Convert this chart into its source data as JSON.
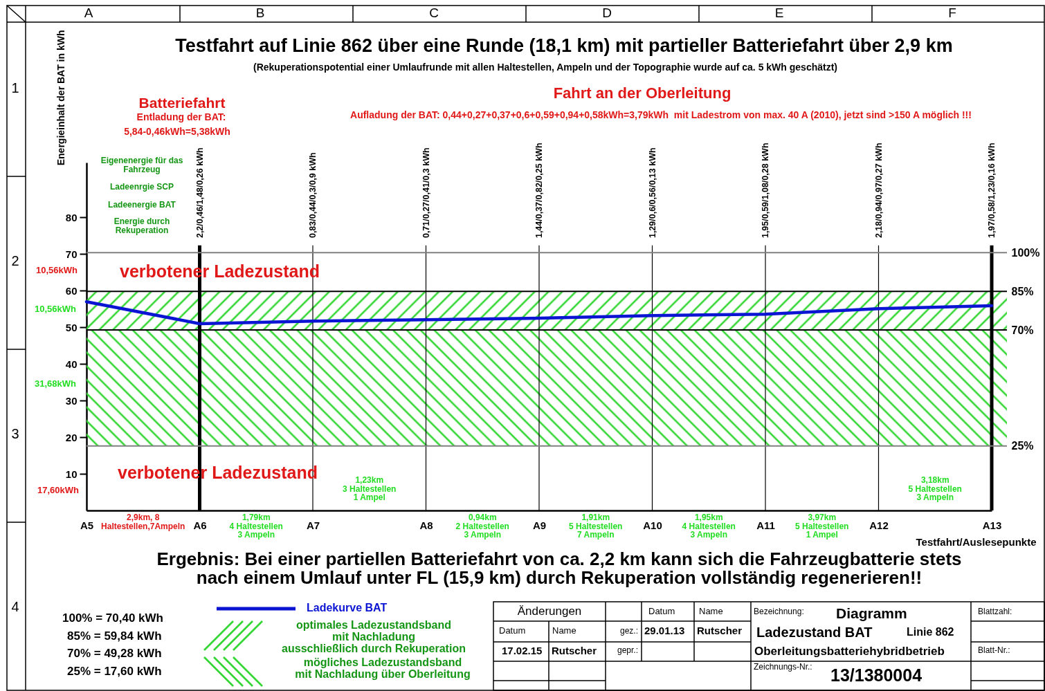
{
  "chart_data": {
    "type": "line",
    "title": "Testfahrt auf Linie 862 über eine Runde (18,1 km) mit partieller Batteriefahrt über 2,9 km",
    "subtitle": "(Rekuperationspotential einer Umlaufrunde mit allen Haltestellen, Ampeln und der Topographie wurde auf ca. 5 kWh geschätzt)",
    "xlabel": "Testfahrt/Auslesepunkte",
    "ylabel": "Energieinhalt der BAT in kWh",
    "categories": [
      "A5",
      "A6",
      "A7",
      "A8",
      "A9",
      "A10",
      "A11",
      "A12",
      "A13"
    ],
    "series": [
      {
        "name": "Ladekurve BAT",
        "color": "#0a14d2",
        "values": [
          57.0,
          51.0,
          51.7,
          52.1,
          52.5,
          53.2,
          53.6,
          55.1,
          55.9
        ]
      }
    ],
    "ylim": [
      0,
      95
    ],
    "yticks": [
      10,
      20,
      30,
      40,
      50,
      60,
      70,
      80
    ],
    "y2lim": [
      0,
      134.94
    ],
    "y2ticks": [
      {
        "value": 100,
        "label": "100%"
      },
      {
        "value": 85,
        "label": "85%"
      },
      {
        "value": 70,
        "label": "70%"
      },
      {
        "value": 25,
        "label": "25%"
      }
    ],
    "grid": false,
    "legend": "bottom",
    "marker": "none",
    "line_style": "solid",
    "bands": [
      {
        "axis": "y",
        "from": 49.28,
        "to": 59.84,
        "color": "#33d633"
      },
      {
        "axis": "y",
        "from": 17.6,
        "to": 49.28,
        "color": "#33d633"
      }
    ],
    "ref_lines": [
      {
        "axis": "y",
        "value": 70.4,
        "color": "#808080"
      },
      {
        "axis": "y",
        "value": 59.84,
        "color": "#000000"
      },
      {
        "axis": "y",
        "value": 49.28,
        "color": "#000000"
      },
      {
        "axis": "y",
        "value": 17.6,
        "color": "#808080"
      },
      {
        "axis": "x",
        "value": "A6",
        "label": "2,2/0,46/1,48/0,26 kWh",
        "color": "#000000"
      },
      {
        "axis": "x",
        "value": "A7",
        "label": "0,83/0,44/0,3/0,9 kWh",
        "color": "#000000"
      },
      {
        "axis": "x",
        "value": "A8",
        "label": "0,71/0,27/0,41/0,3 kWh",
        "color": "#000000"
      },
      {
        "axis": "x",
        "value": "A9",
        "label": "1,44/0,37/0,82/0,25 kWh",
        "color": "#000000"
      },
      {
        "axis": "x",
        "value": "A10",
        "label": "1,29/0,6/0,56/0,13 kWh",
        "color": "#000000"
      },
      {
        "axis": "x",
        "value": "A11",
        "label": "1,95/0,59/1,08/0,28 kWh",
        "color": "#000000"
      },
      {
        "axis": "x",
        "value": "A12",
        "label": "2,18/0,94/0,97/0,27 kWh",
        "color": "#000000"
      },
      {
        "axis": "x",
        "value": "A13",
        "label": "1,97/0,58/1,23/0,16 kWh",
        "color": "#000000"
      }
    ],
    "annotations": [
      "Batteriefahrt",
      "Entladung der BAT:",
      "5,84-0,46kWh=5,38kWh",
      "Fahrt an der Oberleitung",
      "Aufladung der BAT: 0,44+0,27+0,37+0,6+0,59+0,94+0,58kWh=3,79kWh  mit Ladestrom von max. 40 A (2010), jetzt sind >150 A möglich !!!",
      "Eigenenergie für das Fahrzeug",
      "Ladeenrgie SCP",
      "Ladeenergie BAT",
      "Energie durch Rekuperation",
      "10,56kWh",
      "10,56kWh",
      "31,68kWh",
      "17,60kWh",
      "verbotener Ladezustand",
      "verbotener Ladezustand",
      "2,9km, 8 Haltestellen,7Ampeln",
      "1,79km\n4 Haltestellen\n3 Ampeln",
      "1,23km\n3 Haltestellen\n1 Ampel",
      "0,94km\n2 Haltestellen\n3 Ampeln",
      "1,91km\n5 Haltestellen\n7 Ampeln",
      "1,95km\n4 Haltestellen\n3 Ampeln",
      "3,97km\n5 Haltestellen\n1 Ampel",
      "3,18km\n5 Haltestellen\n3 Ampeln",
      "Ergebnis: Bei einer partiellen Batteriefahrt von ca. 2,2 km kann sich die Fahrzeugbatterie stets\nnach einem Umlauf unter FL (15,9 km) durch Rekuperation vollständig regenerieren!!",
      "100% = 70,40 kWh",
      "85% = 59,84 kWh",
      "70% = 49,28 kWh",
      "25% = 17,60 kWh",
      "Änderungen",
      "Datum",
      "Name",
      "Datum",
      "Name",
      "gez.:",
      "29.01.13",
      "Rutscher",
      "17.02.15",
      "Rutscher",
      "gepr.:",
      "Bezeichnung:",
      "Diagramm",
      "Ladezustand BAT",
      "Linie 862",
      "Oberleitungsbatteriehybridbetrieb",
      "Zeichnungs-Nr.:",
      "13/1380004",
      "Blattzahl:",
      "Blatt-Nr.:",
      "A",
      "B",
      "C",
      "D",
      "E",
      "F",
      "1",
      "2",
      "3",
      "4",
      "optimales Ladezustandsband\nmit Nachladung\nausschließlich durch Rekuperation",
      "mögliches Ladezustandsband\nmit Nachladung über Oberleitung"
    ]
  }
}
